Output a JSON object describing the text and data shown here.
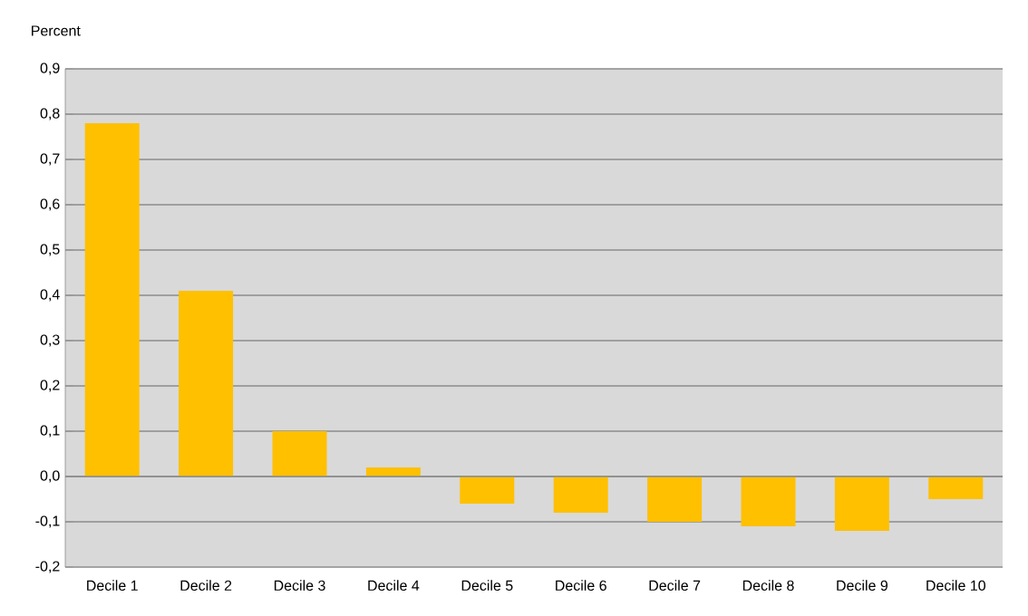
{
  "chart_data": {
    "type": "bar",
    "ylabel": "Percent",
    "categories": [
      "Decile 1",
      "Decile 2",
      "Decile 3",
      "Decile 4",
      "Decile 5",
      "Decile 6",
      "Decile 7",
      "Decile 8",
      "Decile 9",
      "Decile 10"
    ],
    "values": [
      0.78,
      0.41,
      0.1,
      0.02,
      -0.06,
      -0.08,
      -0.1,
      -0.11,
      -0.12,
      -0.05
    ],
    "color": "#ffc000",
    "ylim": [
      -0.2,
      0.9
    ],
    "yticks": [
      {
        "value": -0.2,
        "label": "-0,2"
      },
      {
        "value": -0.1,
        "label": "-0,1"
      },
      {
        "value": 0.0,
        "label": "0,0"
      },
      {
        "value": 0.1,
        "label": "0,1"
      },
      {
        "value": 0.2,
        "label": "0,2"
      },
      {
        "value": 0.3,
        "label": "0,3"
      },
      {
        "value": 0.4,
        "label": "0,4"
      },
      {
        "value": 0.5,
        "label": "0,5"
      },
      {
        "value": 0.6,
        "label": "0,6"
      },
      {
        "value": 0.7,
        "label": "0,7"
      },
      {
        "value": 0.8,
        "label": "0,8"
      },
      {
        "value": 0.9,
        "label": "0,9"
      }
    ],
    "grid": "y"
  }
}
